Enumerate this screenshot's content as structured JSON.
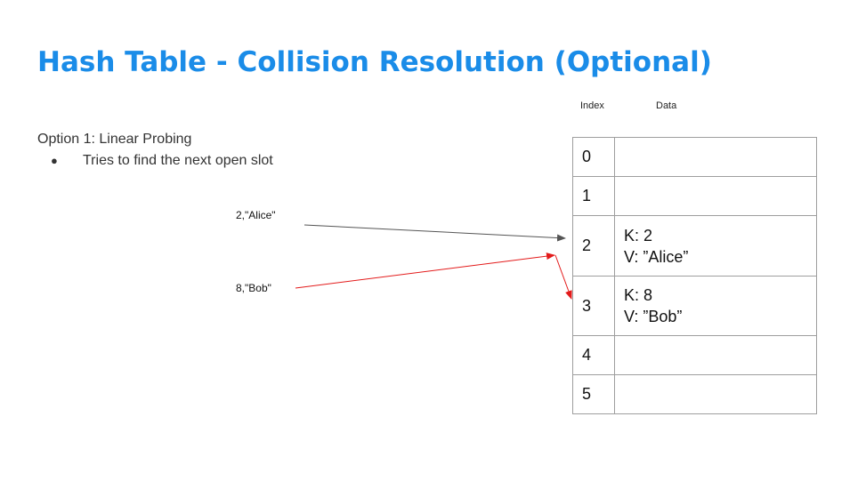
{
  "title": "Hash Table - Collision Resolution (Optional)",
  "columns": {
    "index": "Index",
    "data": "Data"
  },
  "option_heading": "Option 1: Linear Probing",
  "bullet_symbol": "●",
  "bullet_text": "Tries to find the next open slot",
  "inputs": [
    {
      "label": "2,\"Alice\"",
      "color": "#555555"
    },
    {
      "label": "8,\"Bob\"",
      "color": "#e31b1b"
    }
  ],
  "rows": [
    {
      "index": "0",
      "key": "",
      "value": ""
    },
    {
      "index": "1",
      "key": "",
      "value": ""
    },
    {
      "index": "2",
      "key": "K: 2",
      "value": "V: ”Alice”"
    },
    {
      "index": "3",
      "key": "K: 8",
      "value": "V: ”Bob”"
    },
    {
      "index": "4",
      "key": "",
      "value": ""
    },
    {
      "index": "5",
      "key": "",
      "value": ""
    }
  ],
  "colors": {
    "title": "#1a8ce8",
    "arrow_gray": "#555555",
    "arrow_red": "#e31b1b",
    "border": "#9e9e9e"
  }
}
